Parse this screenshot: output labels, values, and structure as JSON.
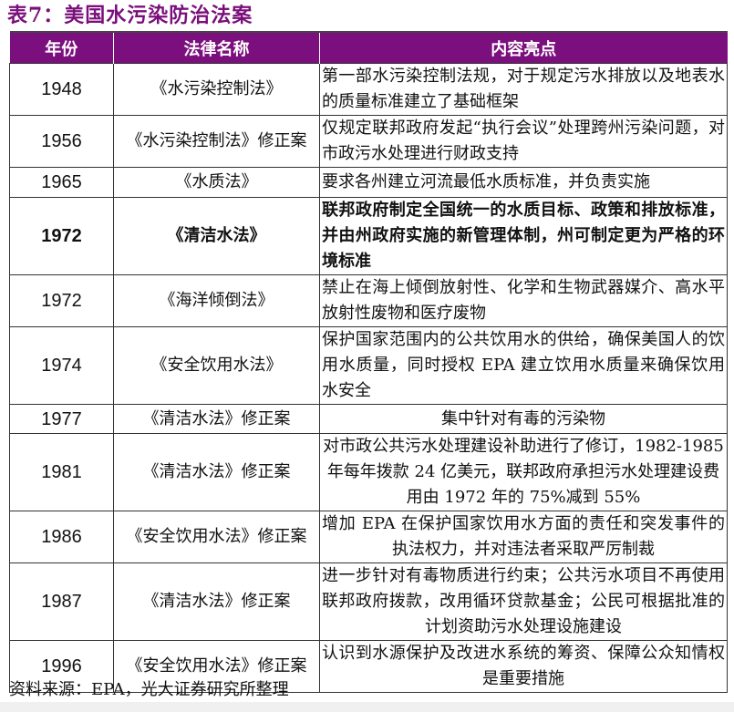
{
  "title": "表7：美国水污染防治法案",
  "headers": [
    "年份",
    "法律名称",
    "内容亮点"
  ],
  "colors": {
    "header_bg": "#7b0f7e",
    "title": "#7a0f7c"
  },
  "rows": [
    {
      "year": "1948",
      "law": "《水污染控制法》",
      "content": "第一部水污染控制法规，对于规定污水排放以及地表水的质量标准建立了基础框架"
    },
    {
      "year": "1956",
      "law": "《水污染控制法》修正案",
      "content": "仅规定联邦政府发起“执行会议”处理跨州污染问题，对市政污水处理进行财政支持"
    },
    {
      "year": "1965",
      "law": "《水质法》",
      "content": "要求各州建立河流最低水质标准，并负责实施"
    },
    {
      "year": "1972",
      "law": "《清洁水法》",
      "content": "联邦政府制定全国统一的水质目标、政策和排放标准，并由州政府实施的新管理体制，州可制定更为严格的环境标准"
    },
    {
      "year": "1972",
      "law": "《海洋倾倒法》",
      "content": "禁止在海上倾倒放射性、化学和生物武器媒介、高水平放射性废物和医疗废物"
    },
    {
      "year": "1974",
      "law": "《安全饮用水法》",
      "content": "保护国家范围内的公共饮用水的供给，确保美国人的饮用水质量，同时授权 EPA 建立饮用水质量来确保饮用水安全"
    },
    {
      "year": "1977",
      "law": "《清洁水法》修正案",
      "content": "集中针对有毒的污染物"
    },
    {
      "year": "1981",
      "law": "《清洁水法》修正案",
      "content": "对市政公共污水处理建设补助进行了修订，1982-1985 年每年拨款 24 亿美元，联邦政府承担污水处理建设费用由 1972 年的 75%减到 55%"
    },
    {
      "year": "1986",
      "law": "《安全饮用水法》修正案",
      "content": "增加 EPA 在保护国家饮用水方面的责任和突发事件的执法权力，并对违法者采取严厉制裁"
    },
    {
      "year": "1987",
      "law": "《清洁水法》修正案",
      "content": "进一步针对有毒物质进行约束；公共污水项目不再使用联邦政府拨款，改用循环贷款基金；公民可根据批准的计划资助污水处理设施建设"
    },
    {
      "year": "1996",
      "law": "《安全饮用水法》修正案",
      "content": "认识到水源保护及改进水系统的筹资、保障公众知情权是重要措施"
    }
  ],
  "source": "资料来源：EPA，光大证券研究所整理"
}
